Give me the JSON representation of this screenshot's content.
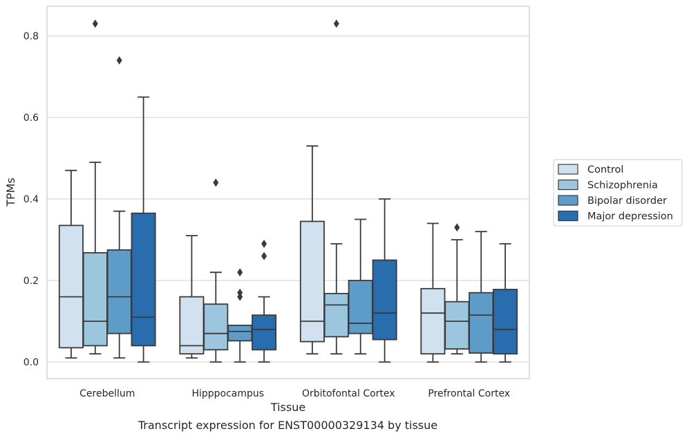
{
  "caption": "Transcript expression for ENST00000329134 by tissue",
  "chart_data": {
    "type": "box",
    "xlabel": "Tissue",
    "ylabel": "TPMs",
    "ylim": [
      -0.04,
      0.87
    ],
    "yticks": [
      0.0,
      0.2,
      0.4,
      0.6,
      0.8
    ],
    "ytick_labels": [
      "0.0",
      "0.2",
      "0.4",
      "0.6",
      "0.8"
    ],
    "grid": "horizontal",
    "legend_position": "center-right outside",
    "categories": [
      "Cerebellum",
      "Hipppocampus",
      "Orbitofontal Cortex",
      "Prefrontal Cortex"
    ],
    "series": [
      {
        "name": "Control",
        "color": "#d1e1f0",
        "boxes": [
          {
            "whislo": 0.01,
            "q1": 0.035,
            "med": 0.16,
            "q3": 0.335,
            "whishi": 0.47,
            "fliers": []
          },
          {
            "whislo": 0.01,
            "q1": 0.02,
            "med": 0.04,
            "q3": 0.16,
            "whishi": 0.31,
            "fliers": []
          },
          {
            "whislo": 0.02,
            "q1": 0.05,
            "med": 0.1,
            "q3": 0.345,
            "whishi": 0.53,
            "fliers": []
          },
          {
            "whislo": 0.0,
            "q1": 0.02,
            "med": 0.12,
            "q3": 0.18,
            "whishi": 0.34,
            "fliers": []
          }
        ]
      },
      {
        "name": "Schizophrenia",
        "color": "#9cc5de",
        "boxes": [
          {
            "whislo": 0.02,
            "q1": 0.04,
            "med": 0.1,
            "q3": 0.268,
            "whishi": 0.49,
            "fliers": [
              0.83
            ]
          },
          {
            "whislo": 0.0,
            "q1": 0.03,
            "med": 0.07,
            "q3": 0.142,
            "whishi": 0.22,
            "fliers": [
              0.44
            ]
          },
          {
            "whislo": 0.02,
            "q1": 0.062,
            "med": 0.14,
            "q3": 0.168,
            "whishi": 0.29,
            "fliers": [
              0.83
            ]
          },
          {
            "whislo": 0.02,
            "q1": 0.032,
            "med": 0.1,
            "q3": 0.148,
            "whishi": 0.3,
            "fliers": [
              0.33
            ]
          }
        ]
      },
      {
        "name": "Bipolar disorder",
        "color": "#5d9cc8",
        "boxes": [
          {
            "whislo": 0.01,
            "q1": 0.07,
            "med": 0.16,
            "q3": 0.275,
            "whishi": 0.37,
            "fliers": [
              0.74
            ]
          },
          {
            "whislo": 0.0,
            "q1": 0.052,
            "med": 0.075,
            "q3": 0.09,
            "whishi": 0.09,
            "fliers": [
              0.22,
              0.17,
              0.16
            ]
          },
          {
            "whislo": 0.02,
            "q1": 0.07,
            "med": 0.095,
            "q3": 0.2,
            "whishi": 0.35,
            "fliers": []
          },
          {
            "whislo": 0.0,
            "q1": 0.022,
            "med": 0.115,
            "q3": 0.17,
            "whishi": 0.32,
            "fliers": []
          }
        ]
      },
      {
        "name": "Major depression",
        "color": "#2a6daf",
        "boxes": [
          {
            "whislo": 0.0,
            "q1": 0.04,
            "med": 0.11,
            "q3": 0.365,
            "whishi": 0.65,
            "fliers": []
          },
          {
            "whislo": 0.0,
            "q1": 0.03,
            "med": 0.08,
            "q3": 0.115,
            "whishi": 0.16,
            "fliers": [
              0.29,
              0.26
            ]
          },
          {
            "whislo": 0.0,
            "q1": 0.055,
            "med": 0.12,
            "q3": 0.25,
            "whishi": 0.4,
            "fliers": []
          },
          {
            "whislo": 0.0,
            "q1": 0.02,
            "med": 0.08,
            "q3": 0.178,
            "whishi": 0.29,
            "fliers": []
          }
        ]
      }
    ]
  }
}
